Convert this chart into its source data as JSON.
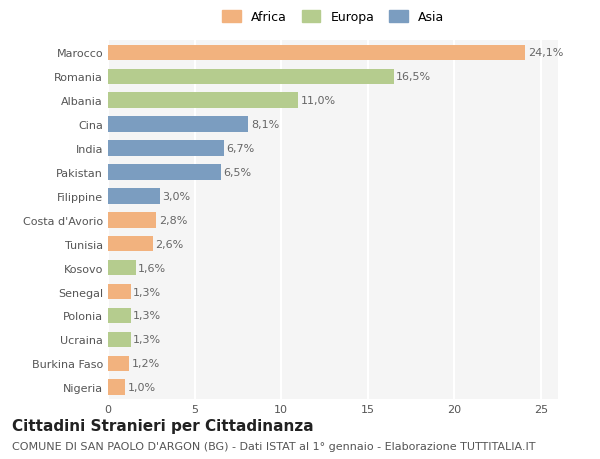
{
  "categories": [
    "Nigeria",
    "Burkina Faso",
    "Ucraina",
    "Polonia",
    "Senegal",
    "Kosovo",
    "Tunisia",
    "Costa d'Avorio",
    "Filippine",
    "Pakistan",
    "India",
    "Cina",
    "Albania",
    "Romania",
    "Marocco"
  ],
  "values": [
    1.0,
    1.2,
    1.3,
    1.3,
    1.3,
    1.6,
    2.6,
    2.8,
    3.0,
    6.5,
    6.7,
    8.1,
    11.0,
    16.5,
    24.1
  ],
  "labels": [
    "1,0%",
    "1,2%",
    "1,3%",
    "1,3%",
    "1,3%",
    "1,6%",
    "2,6%",
    "2,8%",
    "3,0%",
    "6,5%",
    "6,7%",
    "8,1%",
    "11,0%",
    "16,5%",
    "24,1%"
  ],
  "continents": [
    "Africa",
    "Africa",
    "Europa",
    "Europa",
    "Africa",
    "Europa",
    "Africa",
    "Africa",
    "Asia",
    "Asia",
    "Asia",
    "Asia",
    "Europa",
    "Europa",
    "Africa"
  ],
  "colors": {
    "Africa": "#F2B27E",
    "Europa": "#B5CC8E",
    "Asia": "#7B9DC0"
  },
  "legend_labels": [
    "Africa",
    "Europa",
    "Asia"
  ],
  "legend_colors": [
    "#F2B27E",
    "#B5CC8E",
    "#7B9DC0"
  ],
  "title": "Cittadini Stranieri per Cittadinanza",
  "subtitle": "COMUNE DI SAN PAOLO D'ARGON (BG) - Dati ISTAT al 1° gennaio - Elaborazione TUTTITALIA.IT",
  "xlim": [
    0,
    26
  ],
  "xticks": [
    0,
    5,
    10,
    15,
    20,
    25
  ],
  "bg_color": "#FFFFFF",
  "plot_bg_color": "#F5F5F5",
  "grid_color": "#FFFFFF",
  "bar_height": 0.65,
  "title_fontsize": 11,
  "subtitle_fontsize": 8,
  "label_fontsize": 8,
  "tick_fontsize": 8,
  "legend_fontsize": 9
}
